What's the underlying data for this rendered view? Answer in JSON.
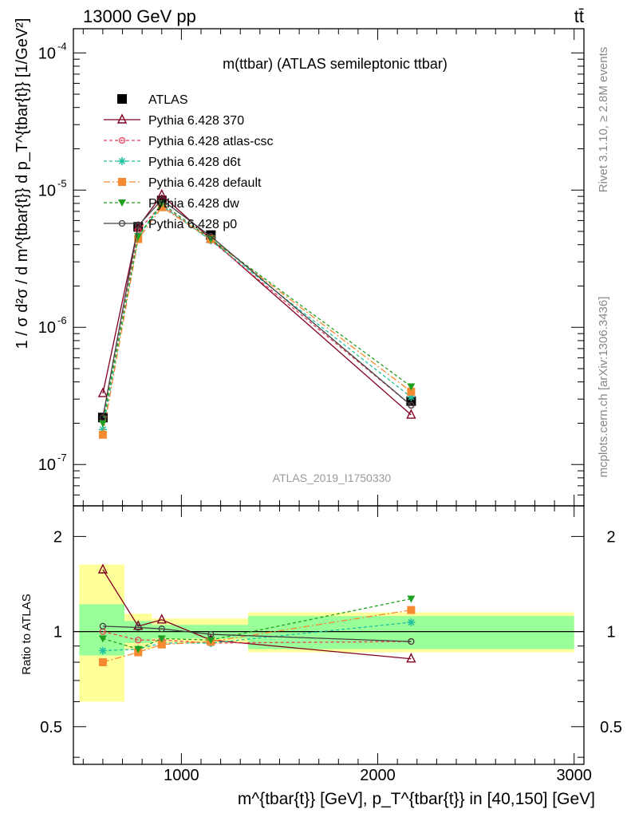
{
  "header": {
    "left": "13000 GeV pp",
    "right": "tt̄"
  },
  "side": {
    "rivet": "Rivet 3.1.10, ≥ 2.8M events",
    "mcplots": "mcplots.cern.ch [arXiv:1306.3436]"
  },
  "chart_data": {
    "type": "line",
    "title": "m(ttbar) (ATLAS semileptonic ttbar)",
    "watermark": "ATLAS_2019_I1750330",
    "xlabel": "m^{tbar{t}} [GeV], p_T^{tbar{t}} in [40,150] [GeV]",
    "ylabel": "1 / σ d²σ / d m^{tbar{t}} d p_T^{tbar{t}} [1/GeV²]",
    "ratio_ylabel": "Ratio to ATLAS",
    "xlim": [
      450,
      3050
    ],
    "ylim": [
      5e-08,
      0.00015
    ],
    "yscale": "log",
    "ratio_ylim": [
      0.38,
      2.5
    ],
    "x_ticks": [
      "1000",
      "2000",
      "3000"
    ],
    "y_ticks": [
      "10^{-7}",
      "10^{-6}",
      "10^{-5}",
      "10^{-4}"
    ],
    "ratio_ticks": [
      "0.5",
      "1",
      "2"
    ],
    "bin_edges": [
      480,
      710,
      850,
      950,
      1340,
      3000
    ],
    "x": [
      600,
      780,
      900,
      1150,
      2170
    ],
    "legend_placement": "top-left",
    "series": [
      {
        "name": "ATLAS",
        "color": "#000000",
        "style": "solid",
        "marker": "square",
        "values": [
          2.2e-07,
          5.4e-06,
          8.4e-06,
          4.7e-06,
          2.9e-07
        ],
        "ratio": [
          1.0,
          1.0,
          1.0,
          1.0,
          1.0
        ]
      },
      {
        "name": "Pythia 6.428 370",
        "color": "#800020",
        "style": "solid",
        "marker": "triangle-open",
        "values": [
          3.3e-07,
          5.4e-06,
          9.2e-06,
          4.4e-06,
          2.3e-07
        ],
        "ratio": [
          1.57,
          1.04,
          1.09,
          0.94,
          0.82
        ]
      },
      {
        "name": "Pythia 6.428 atlas-csc",
        "color": "#e8405a",
        "style": "dashed",
        "marker": "circle-open",
        "values": [
          2.2e-07,
          5.1e-06,
          7.8e-06,
          4.3e-06,
          2.7e-07
        ],
        "ratio": [
          1.0,
          0.94,
          0.94,
          0.92,
          0.93
        ]
      },
      {
        "name": "Pythia 6.428 d6t",
        "color": "#20c0a0",
        "style": "dashed",
        "marker": "star",
        "values": [
          1.8e-07,
          4.6e-06,
          7.7e-06,
          4.3e-06,
          3.1e-07
        ],
        "ratio": [
          0.87,
          0.88,
          0.92,
          0.92,
          1.07
        ]
      },
      {
        "name": "Pythia 6.428 default",
        "color": "#f58a30",
        "style": "dashdot",
        "marker": "square",
        "values": [
          1.65e-07,
          4.4e-06,
          7.5e-06,
          4.4e-06,
          3.4e-07
        ],
        "ratio": [
          0.8,
          0.86,
          0.91,
          0.93,
          1.17
        ]
      },
      {
        "name": "Pythia 6.428 dw",
        "color": "#20a020",
        "style": "dashed",
        "marker": "triangle-down",
        "values": [
          2e-07,
          4.6e-06,
          8e-06,
          4.4e-06,
          3.7e-07
        ],
        "ratio": [
          0.95,
          0.88,
          0.95,
          0.94,
          1.27
        ]
      },
      {
        "name": "Pythia 6.428 p0",
        "color": "#404040",
        "style": "solid",
        "marker": "circle-open",
        "values": [
          2.2e-07,
          5.5e-06,
          8.5e-06,
          4.6e-06,
          2.7e-07
        ],
        "ratio": [
          1.04,
          1.03,
          1.02,
          0.98,
          0.93
        ]
      }
    ],
    "bands": {
      "inner": [
        [
          0.84,
          1.22
        ],
        [
          0.92,
          1.08
        ],
        [
          0.95,
          1.05
        ],
        [
          0.95,
          1.05
        ],
        [
          0.88,
          1.12
        ]
      ],
      "outer": [
        [
          0.6,
          1.63
        ],
        [
          0.88,
          1.14
        ],
        [
          0.92,
          1.1
        ],
        [
          0.92,
          1.1
        ],
        [
          0.86,
          1.15
        ]
      ]
    }
  }
}
